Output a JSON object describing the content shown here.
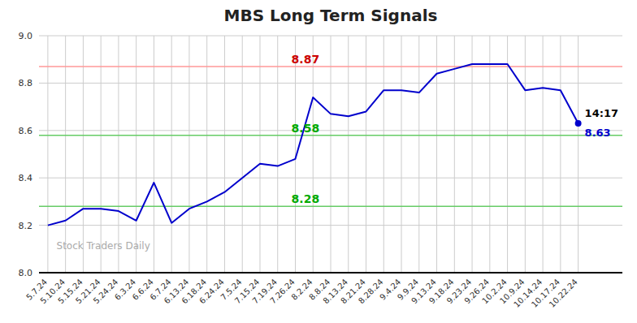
{
  "chart_data": {
    "type": "line",
    "title": "MBS Long Term Signals",
    "categories": [
      "5.7.24",
      "5.10.24",
      "5.15.24",
      "5.21.24",
      "5.24.24",
      "6.3.24",
      "6.6.24",
      "6.7.24",
      "6.13.24",
      "6.18.24",
      "6.24.24",
      "7.5.24",
      "7.15.24",
      "7.19.24",
      "7.26.24",
      "8.2.24",
      "8.8.24",
      "8.13.24",
      "8.21.24",
      "8.28.24",
      "9.4.24",
      "9.9.24",
      "9.13.24",
      "9.18.24",
      "9.23.24",
      "9.26.24",
      "10.2.24",
      "10.9.24",
      "10.14.24",
      "10.17.24",
      "10.22.24"
    ],
    "series": [
      {
        "color": "#0000cc",
        "values": [
          8.2,
          8.22,
          8.27,
          8.27,
          8.26,
          8.22,
          8.38,
          8.21,
          8.27,
          8.3,
          8.34,
          8.4,
          8.46,
          8.45,
          8.48,
          8.74,
          8.67,
          8.66,
          8.68,
          8.77,
          8.77,
          8.76,
          8.84,
          8.86,
          8.88,
          8.88,
          8.88,
          8.77,
          8.78,
          8.77,
          8.63
        ]
      }
    ],
    "hlines": [
      {
        "value": 8.87,
        "label": "8.87",
        "color": "#ff9999",
        "label_color": "#cc0000"
      },
      {
        "value": 8.58,
        "label": "8.58",
        "color": "#66cc66",
        "label_color": "#00aa00"
      },
      {
        "value": 8.28,
        "label": "8.28",
        "color": "#66cc66",
        "label_color": "#00aa00"
      }
    ],
    "annotations": [
      {
        "text": "14:17",
        "color": "#000000"
      },
      {
        "text": "8.63",
        "color": "#0000cc"
      }
    ],
    "watermark": {
      "text": "Stock Traders Daily",
      "color": "#aaaaaa"
    },
    "ylim": [
      8.0,
      9.0
    ],
    "yticks": [
      {
        "value": 8,
        "label": "8.0"
      },
      8.2,
      8.4,
      8.6,
      8.8,
      {
        "value": 9,
        "label": "9.0"
      }
    ],
    "grid": true,
    "grid_color": "#cccccc"
  }
}
